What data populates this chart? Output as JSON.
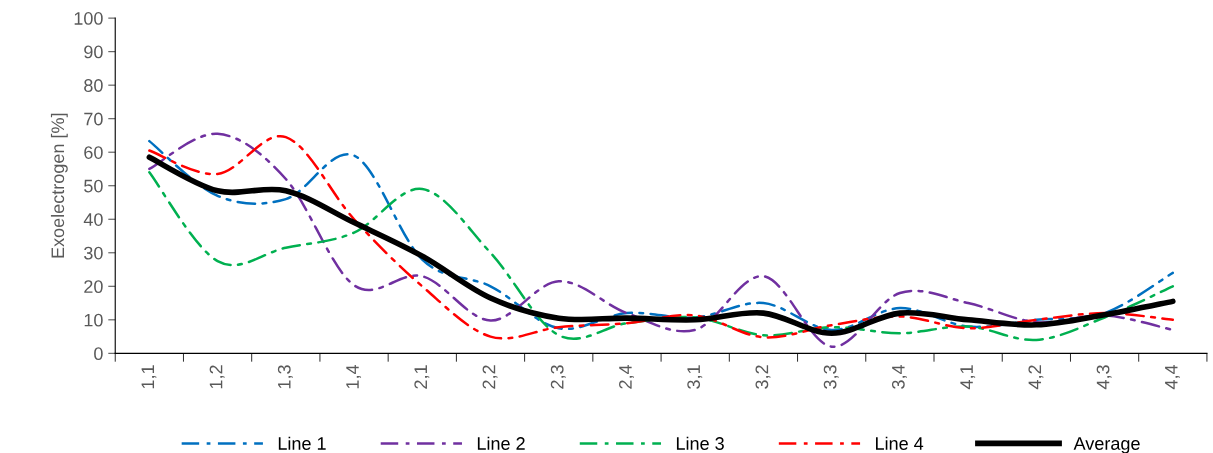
{
  "chart_data": {
    "type": "line",
    "ylabel": "Exoelectrogen [%]",
    "categories": [
      "1,1",
      "1,2",
      "1,3",
      "1,4",
      "2,1",
      "2,2",
      "2,3",
      "2,4",
      "3,1",
      "3,2",
      "3,3",
      "3,4",
      "4,1",
      "4,2",
      "4,3",
      "4,4"
    ],
    "series": [
      {
        "name": "Line 1",
        "color": "#0070c0",
        "line_style": "dashdot",
        "values": [
          63.3,
          47,
          46,
          59,
          28,
          20,
          7.5,
          12,
          10.7,
          15,
          7,
          13.5,
          8,
          10,
          12,
          24
        ]
      },
      {
        "name": "Line 2",
        "color": "#7030a0",
        "line_style": "dashdot",
        "values": [
          55,
          65.5,
          52,
          20.3,
          23,
          9.8,
          21.5,
          12,
          7,
          23,
          2,
          18,
          15,
          9.3,
          11.3,
          7
        ]
      },
      {
        "name": "Line 3",
        "color": "#00b050",
        "line_style": "dashdot",
        "values": [
          54,
          27.5,
          31.5,
          36,
          49,
          30,
          5.4,
          9,
          10.7,
          5.4,
          7.8,
          6,
          8,
          4,
          10.7,
          20
        ]
      },
      {
        "name": "Line 4",
        "color": "#ff0000",
        "line_style": "dashdot",
        "values": [
          60.5,
          53.5,
          64.5,
          40,
          20,
          5,
          7.8,
          9,
          11.3,
          4.8,
          8.4,
          11,
          7.5,
          10,
          12,
          10
        ]
      },
      {
        "name": "Average",
        "color": "#000000",
        "line_style": "solid",
        "values": [
          58.5,
          48.5,
          48.5,
          39,
          29,
          16.5,
          10.5,
          10.5,
          10,
          12,
          6,
          12,
          10,
          8.5,
          11.5,
          15.5
        ]
      }
    ],
    "ylim": [
      0,
      100
    ],
    "yticks": [
      0,
      10,
      20,
      30,
      40,
      50,
      60,
      70,
      80,
      90,
      100
    ],
    "grid": false,
    "legend": "bottom",
    "marker": "none"
  }
}
